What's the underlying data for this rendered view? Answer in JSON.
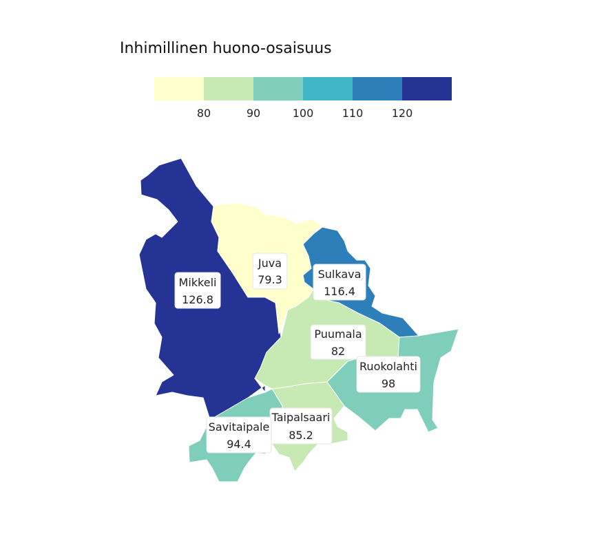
{
  "title": "Inhimillinen huono-osaisuus",
  "legend": {
    "colors": [
      "#ffffcc",
      "#c7e9b4",
      "#7fcdbb",
      "#41b6c4",
      "#2c7fb8",
      "#253494"
    ],
    "ticks": [
      "80",
      "90",
      "100",
      "110",
      "120"
    ]
  },
  "regions": [
    {
      "name": "Mikkeli",
      "value": "126.8",
      "color": "#253494"
    },
    {
      "name": "Juva",
      "value": "79.3",
      "color": "#ffffcc"
    },
    {
      "name": "Sulkava",
      "value": "116.4",
      "color": "#2c7fb8"
    },
    {
      "name": "Puumala",
      "value": "82",
      "color": "#c7e9b4"
    },
    {
      "name": "Ruokolahti",
      "value": "98",
      "color": "#7fcdbb"
    },
    {
      "name": "Taipalsaari",
      "value": "85.2",
      "color": "#c7e9b4"
    },
    {
      "name": "Savitaipale",
      "value": "94.4",
      "color": "#7fcdbb"
    }
  ]
}
